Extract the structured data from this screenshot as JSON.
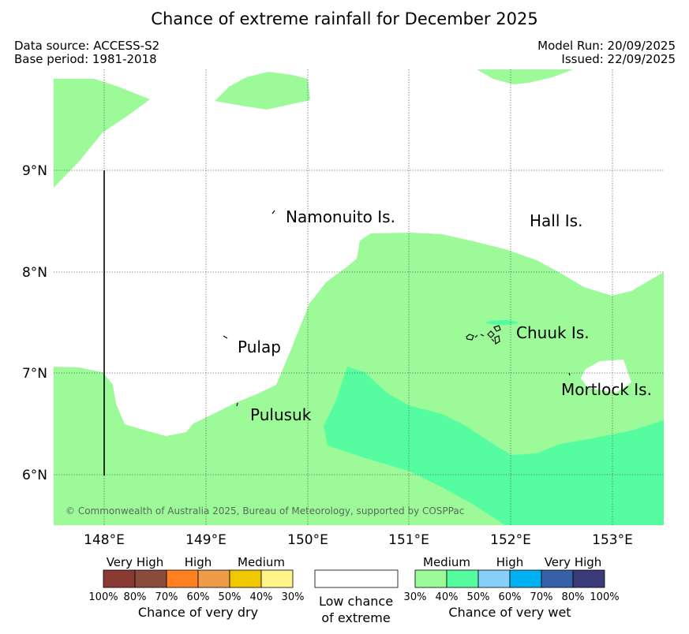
{
  "title": "Chance of extreme rainfall for December 2025",
  "meta": {
    "data_source": "Data source: ACCESS-S2",
    "base_period": "Base period: 1981-2018",
    "model_run": "Model Run: 20/09/2025",
    "issued": "Issued: 22/09/2025"
  },
  "map": {
    "lon_ticks": [
      "148°E",
      "149°E",
      "150°E",
      "151°E",
      "152°E",
      "153°E"
    ],
    "lat_ticks": [
      "9°N",
      "8°N",
      "7°N",
      "6°N"
    ],
    "places": {
      "namonuito": "Namonuito Is.",
      "hall": "Hall Is.",
      "pulap": "Pulap",
      "chuuk": "Chuuk Is.",
      "mortlock": "Mortlock Is.",
      "pulusuk": "Pulusuk"
    },
    "copyright": "© Commonwealth of Australia 2025, Bureau of Meteorology, supported by COSPPac"
  },
  "legend": {
    "dry": {
      "labels": [
        "Very High",
        "High",
        "Medium"
      ],
      "percents": [
        "100%",
        "80%",
        "70%",
        "60%",
        "50%",
        "40%",
        "30%"
      ],
      "caption": "Chance of very dry",
      "colors": [
        "#8b3a33",
        "#8a4a3c",
        "#ff8020",
        "#ef9b4a",
        "#f0c800",
        "#fff38a"
      ]
    },
    "neutral": {
      "caption_line1": "Low chance",
      "caption_line2": "of extreme"
    },
    "wet": {
      "labels": [
        "Medium",
        "High",
        "Very High"
      ],
      "percents": [
        "30%",
        "40%",
        "50%",
        "60%",
        "70%",
        "80%",
        "100%"
      ],
      "caption": "Chance of very wet",
      "colors": [
        "#9cfb98",
        "#55fda0",
        "#87cefa",
        "#00b0f0",
        "#3660a8",
        "#3b3a7a"
      ]
    }
  }
}
